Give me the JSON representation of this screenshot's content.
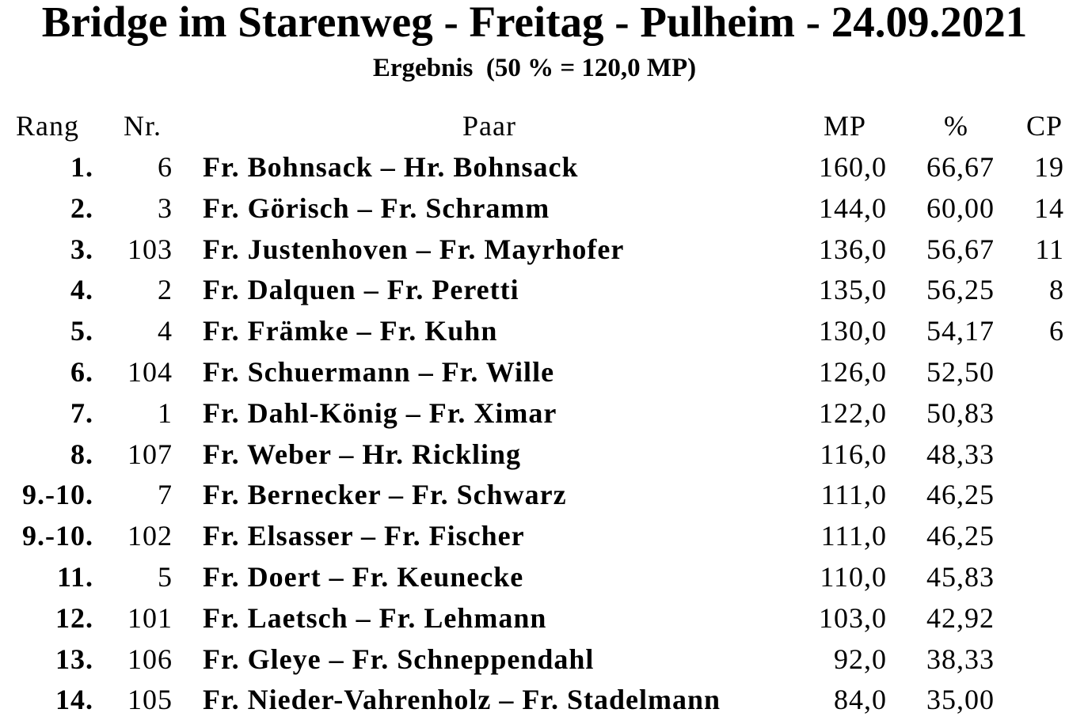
{
  "title": "Bridge im Starenweg - Freitag - Pulheim - 24.09.2021",
  "subtitle": "Ergebnis  (50 % = 120,0 MP)",
  "headers": {
    "rang": "Rang",
    "nr": "Nr.",
    "paar": "Paar",
    "mp": "MP",
    "pct": "%",
    "cp": "CP"
  },
  "rows": [
    {
      "rang": "1.",
      "nr": "6",
      "paar": "Fr. Bohnsack – Hr. Bohnsack",
      "mp": "160,0",
      "pct": "66,67",
      "cp": "19"
    },
    {
      "rang": "2.",
      "nr": "3",
      "paar": "Fr. Görisch – Fr. Schramm",
      "mp": "144,0",
      "pct": "60,00",
      "cp": "14"
    },
    {
      "rang": "3.",
      "nr": "103",
      "paar": "Fr. Justenhoven – Fr. Mayrhofer",
      "mp": "136,0",
      "pct": "56,67",
      "cp": "11"
    },
    {
      "rang": "4.",
      "nr": "2",
      "paar": "Fr. Dalquen – Fr. Peretti",
      "mp": "135,0",
      "pct": "56,25",
      "cp": "8"
    },
    {
      "rang": "5.",
      "nr": "4",
      "paar": "Fr. Främke – Fr. Kuhn",
      "mp": "130,0",
      "pct": "54,17",
      "cp": "6"
    },
    {
      "rang": "6.",
      "nr": "104",
      "paar": "Fr. Schuermann – Fr. Wille",
      "mp": "126,0",
      "pct": "52,50",
      "cp": ""
    },
    {
      "rang": "7.",
      "nr": "1",
      "paar": "Fr. Dahl-König – Fr. Ximar",
      "mp": "122,0",
      "pct": "50,83",
      "cp": ""
    },
    {
      "rang": "8.",
      "nr": "107",
      "paar": "Fr. Weber – Hr. Rickling",
      "mp": "116,0",
      "pct": "48,33",
      "cp": ""
    },
    {
      "rang": "9.-10.",
      "nr": "7",
      "paar": "Fr. Bernecker – Fr. Schwarz",
      "mp": "111,0",
      "pct": "46,25",
      "cp": ""
    },
    {
      "rang": "9.-10.",
      "nr": "102",
      "paar": "Fr. Elsasser – Fr. Fischer",
      "mp": "111,0",
      "pct": "46,25",
      "cp": ""
    },
    {
      "rang": "11.",
      "nr": "5",
      "paar": "Fr. Doert – Fr. Keunecke",
      "mp": "110,0",
      "pct": "45,83",
      "cp": ""
    },
    {
      "rang": "12.",
      "nr": "101",
      "paar": "Fr. Laetsch – Fr. Lehmann",
      "mp": "103,0",
      "pct": "42,92",
      "cp": ""
    },
    {
      "rang": "13.",
      "nr": "106",
      "paar": "Fr. Gleye – Fr. Schneppendahl",
      "mp": "92,0",
      "pct": "38,33",
      "cp": ""
    },
    {
      "rang": "14.",
      "nr": "105",
      "paar": "Fr. Nieder-Vahrenholz – Fr. Stadelmann",
      "mp": "84,0",
      "pct": "35,00",
      "cp": ""
    }
  ]
}
